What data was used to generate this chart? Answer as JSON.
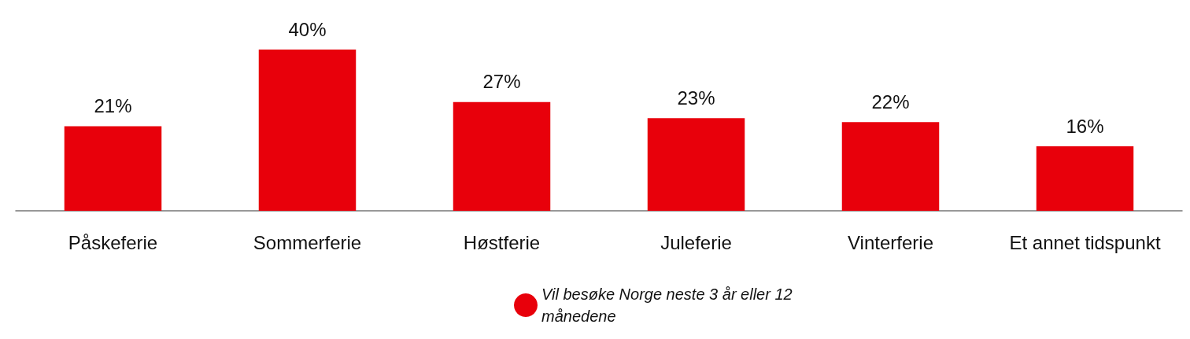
{
  "chart_data": {
    "type": "bar",
    "categories": [
      "Påskeferie",
      "Sommerferie",
      "Høstferie",
      "Juleferie",
      "Vinterferie",
      "Et annet tidspunkt"
    ],
    "series": [
      {
        "name": "Vil besøke Norge neste 3 år eller 12 månedene",
        "color": "#e8000b",
        "values": [
          21,
          40,
          27,
          23,
          22,
          16
        ],
        "value_labels": [
          "21%",
          "40%",
          "27%",
          "23%",
          "22%",
          "16%"
        ]
      }
    ],
    "legend": "bottom"
  }
}
